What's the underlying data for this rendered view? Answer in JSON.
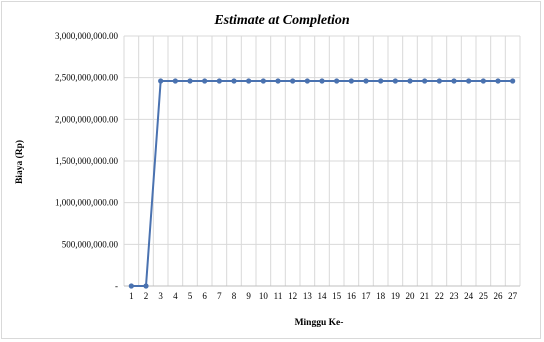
{
  "chart_data": {
    "type": "line",
    "title": "Estimate at Completion",
    "xlabel": "Minggu Ke-",
    "ylabel": "Biaya (Rp)",
    "categories": [
      "1",
      "2",
      "3",
      "4",
      "5",
      "6",
      "7",
      "8",
      "9",
      "10",
      "11",
      "12",
      "13",
      "14",
      "15",
      "16",
      "17",
      "18",
      "19",
      "20",
      "21",
      "22",
      "23",
      "24",
      "25",
      "26",
      "27"
    ],
    "series": [
      {
        "values": [
          0,
          0,
          2460000000,
          2460000000,
          2460000000,
          2460000000,
          2460000000,
          2460000000,
          2460000000,
          2460000000,
          2460000000,
          2460000000,
          2460000000,
          2460000000,
          2460000000,
          2460000000,
          2460000000,
          2460000000,
          2460000000,
          2460000000,
          2460000000,
          2460000000,
          2460000000,
          2460000000,
          2460000000,
          2460000000,
          2460000000
        ]
      }
    ],
    "ylim": [
      0,
      3000000000
    ],
    "yticks": [
      0,
      500000000,
      1000000000,
      1500000000,
      2000000000,
      2500000000,
      3000000000
    ],
    "ytick_labels": [
      "-",
      "500,000,000.00",
      "1,000,000,000.00",
      "1,500,000,000.00",
      "2,000,000,000.00",
      "2,500,000,000.00",
      "3,000,000,000.00"
    ],
    "grid": true,
    "legend": "none",
    "line_color": "#4a72b0"
  }
}
